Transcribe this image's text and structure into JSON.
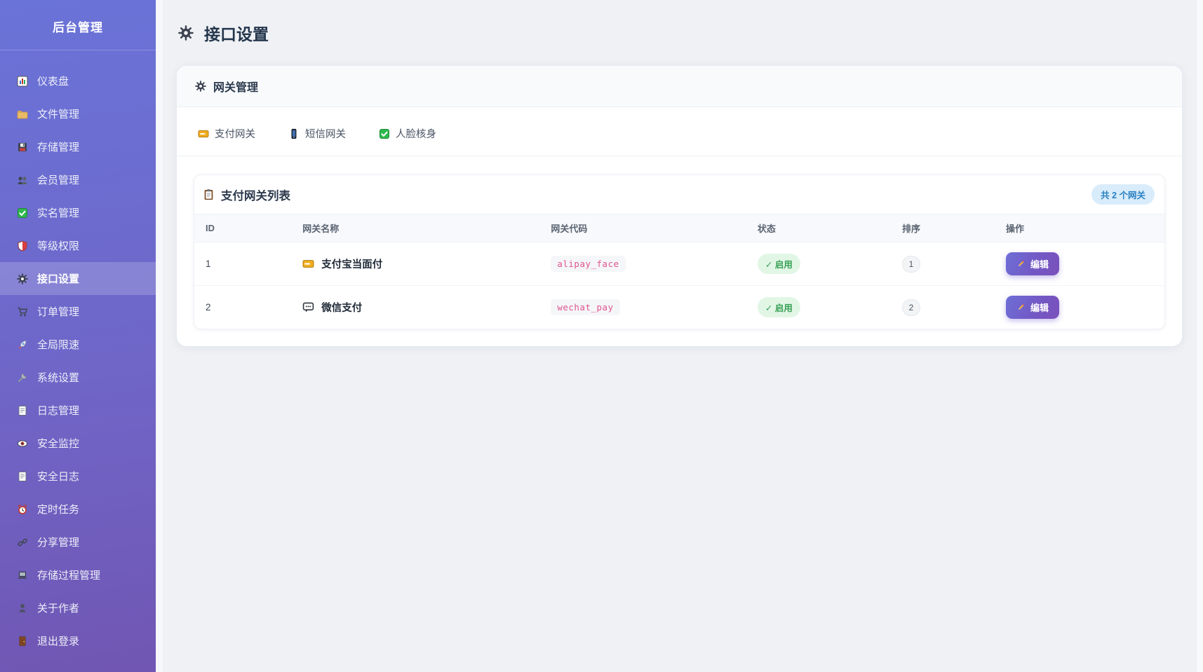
{
  "sidebar": {
    "title": "后台管理",
    "items": [
      {
        "icon": "dashboard",
        "label": "仪表盘",
        "active": false
      },
      {
        "icon": "folder",
        "label": "文件管理",
        "active": false
      },
      {
        "icon": "disk",
        "label": "存储管理",
        "active": false
      },
      {
        "icon": "members",
        "label": "会员管理",
        "active": false
      },
      {
        "icon": "check-green",
        "label": "实名管理",
        "active": false
      },
      {
        "icon": "shield",
        "label": "等级权限",
        "active": false
      },
      {
        "icon": "gear",
        "label": "接口设置",
        "active": true
      },
      {
        "icon": "cart",
        "label": "订单管理",
        "active": false
      },
      {
        "icon": "rocket",
        "label": "全局限速",
        "active": false
      },
      {
        "icon": "wrench",
        "label": "系统设置",
        "active": false
      },
      {
        "icon": "document",
        "label": "日志管理",
        "active": false
      },
      {
        "icon": "eye",
        "label": "安全监控",
        "active": false
      },
      {
        "icon": "document",
        "label": "安全日志",
        "active": false
      },
      {
        "icon": "alarm",
        "label": "定时任务",
        "active": false
      },
      {
        "icon": "link",
        "label": "分享管理",
        "active": false
      },
      {
        "icon": "laptop",
        "label": "存储过程管理",
        "active": false
      },
      {
        "icon": "person",
        "label": "关于作者",
        "active": false
      },
      {
        "icon": "door",
        "label": "退出登录",
        "active": false
      }
    ]
  },
  "page": {
    "title": "接口设置",
    "title_icon": "gear"
  },
  "gateway_card": {
    "title": "网关管理",
    "title_icon": "gear",
    "tabs": [
      {
        "icon": "card",
        "label": "支付网关"
      },
      {
        "icon": "phone",
        "label": "短信网关"
      },
      {
        "icon": "check-green",
        "label": "人脸核身"
      }
    ]
  },
  "list_panel": {
    "title": "支付网关列表",
    "title_icon": "clipboard",
    "count_badge": "共 2 个网关",
    "table": {
      "columns": [
        "ID",
        "网关名称",
        "网关代码",
        "状态",
        "排序",
        "操作"
      ],
      "rows": [
        {
          "id": "1",
          "icon": "card",
          "name": "支付宝当面付",
          "code": "alipay_face",
          "status": "✓ 启用",
          "sort": "1",
          "action": "编辑",
          "action_icon": "pencil"
        },
        {
          "id": "2",
          "icon": "chat",
          "name": "微信支付",
          "code": "wechat_pay",
          "status": "✓ 启用",
          "sort": "2",
          "action": "编辑",
          "action_icon": "pencil"
        }
      ]
    }
  },
  "colors": {
    "sidebar_gradient_top": "#6a73d8",
    "sidebar_gradient_bottom": "#7156b3",
    "active_item_overlay": "rgba(255,255,255,0.18)",
    "accent_button_gradient": [
      "#6e6fd6",
      "#7b50ba"
    ],
    "status_enabled_bg": "#e2f6e6",
    "status_enabled_text": "#38a055",
    "code_text": "#e0568f",
    "badge_bg": "#d8ecfb",
    "badge_text": "#2a80c2",
    "main_background": "#eff1f5"
  }
}
